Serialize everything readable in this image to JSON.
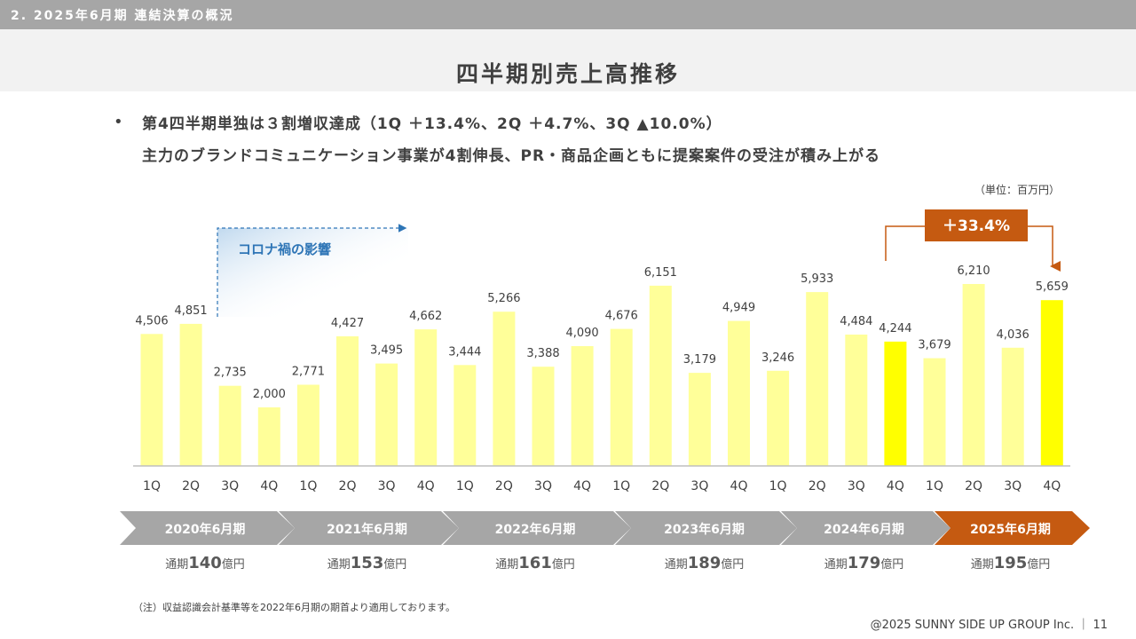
{
  "header": {
    "section_label": "2. 2025年6月期 連結決算の概況",
    "title": "四半期別売上高推移"
  },
  "bullets": {
    "dot": "•",
    "line1": "第4四半期単独は３割増収達成（1Q ＋13.4%、2Q ＋4.7%、3Q ▲10.0%）",
    "line2": "主力のブランドコミュニケーション事業が4割伸長、PR・商品企画ともに提案案件の受注が積み上がる"
  },
  "unit_label": "（単位：百万円）",
  "annotations": {
    "covid": "コロナ禍の影響",
    "growth": "＋33.4%"
  },
  "colors": {
    "bar": "#ffff99",
    "bar_highlight": "#ffff00",
    "accent": "#c55a11",
    "covid_text": "#2e75b6",
    "era_arrow": "#a6a6a6"
  },
  "chart_data": {
    "type": "bar",
    "categories": [
      "1Q",
      "2Q",
      "3Q",
      "4Q",
      "1Q",
      "2Q",
      "3Q",
      "4Q",
      "1Q",
      "2Q",
      "3Q",
      "4Q",
      "1Q",
      "2Q",
      "3Q",
      "4Q",
      "1Q",
      "2Q",
      "3Q",
      "4Q",
      "1Q",
      "2Q",
      "3Q",
      "4Q"
    ],
    "values": [
      4506,
      4851,
      2735,
      2000,
      2771,
      4427,
      3495,
      4662,
      3444,
      5266,
      3388,
      4090,
      4676,
      6151,
      3179,
      4949,
      3246,
      5933,
      4484,
      4244,
      3679,
      6210,
      4036,
      5659
    ],
    "labels": [
      "4,506",
      "4,851",
      "2,735",
      "2,000",
      "2,771",
      "4,427",
      "3,495",
      "4,662",
      "3,444",
      "5,266",
      "3,388",
      "4,090",
      "4,676",
      "6,151",
      "3,179",
      "4,949",
      "3,246",
      "5,933",
      "4,484",
      "4,244",
      "3,679",
      "6,210",
      "4,036",
      "5,659"
    ],
    "highlighted_indices": [
      19,
      23
    ],
    "ylim": [
      0,
      7000
    ]
  },
  "periods": [
    {
      "label": "2020年6月期",
      "prefix": "通期",
      "value": "140",
      "unit": "億円"
    },
    {
      "label": "2021年6月期",
      "prefix": "通期",
      "value": "153",
      "unit": "億円"
    },
    {
      "label": "2022年6月期",
      "prefix": "通期",
      "value": "161",
      "unit": "億円"
    },
    {
      "label": "2023年6月期",
      "prefix": "通期",
      "value": "189",
      "unit": "億円"
    },
    {
      "label": "2024年6月期",
      "prefix": "通期",
      "value": "179",
      "unit": "億円"
    },
    {
      "label": "2025年6月期",
      "prefix": "通期",
      "value": "195",
      "unit": "億円"
    }
  ],
  "footer": {
    "note": "（注）収益認識会計基準等を2022年6月期の期首より適用しております。",
    "copyright": "@2025 SUNNY SIDE UP GROUP Inc. ｜ 11"
  }
}
